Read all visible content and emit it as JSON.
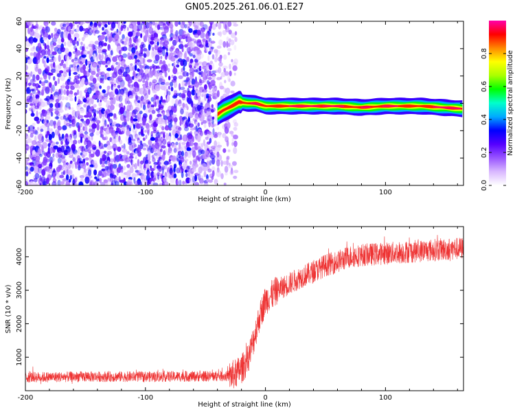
{
  "figure_title": "GN05.2025.261.06.01.E27",
  "chart_data": [
    {
      "type": "heatmap",
      "title": "GN05.2025.261.06.01.E27",
      "xlabel": "Height of straight line (km)",
      "ylabel": "Frequency (Hz)",
      "xlim": [
        -200,
        165
      ],
      "ylim": [
        -60,
        60
      ],
      "xticks": [
        -200,
        -100,
        0,
        100
      ],
      "xtick_labels": [
        "-200",
        "-100",
        "0",
        "100"
      ],
      "yticks": [
        -60,
        -40,
        -20,
        0,
        20,
        40,
        60
      ],
      "ytick_labels": [
        "-60",
        "-40",
        "-20",
        "0",
        "20",
        "40",
        "60"
      ],
      "colorbar": {
        "label": "Normalized spectral amplitude",
        "range": [
          0,
          1
        ],
        "ticks": [
          0,
          0.2,
          0.4,
          0.6,
          0.8
        ],
        "tick_labels": [
          "0.0",
          "0.2",
          "0.4",
          "0.6",
          "0.8"
        ],
        "colormap": [
          "#ffffff",
          "#d9b8ff",
          "#9955ff",
          "#5500ff",
          "#0000ff",
          "#00aaff",
          "#00ffcc",
          "#00ff00",
          "#aaff00",
          "#ffff00",
          "#ff8800",
          "#ff0000",
          "#ff00aa"
        ]
      },
      "noise_region": {
        "x_range": [
          -200,
          -25
        ],
        "freq_range": [
          -60,
          60
        ]
      },
      "ridge": [
        {
          "x": -40,
          "freq": -8
        },
        {
          "x": -35,
          "freq": -5
        },
        {
          "x": -28,
          "freq": -2
        },
        {
          "x": -22,
          "freq": 1
        },
        {
          "x": -15,
          "freq": 0
        },
        {
          "x": -8,
          "freq": 0
        },
        {
          "x": 0,
          "freq": -2
        },
        {
          "x": 20,
          "freq": -2
        },
        {
          "x": 60,
          "freq": -2
        },
        {
          "x": 80,
          "freq": -3
        },
        {
          "x": 100,
          "freq": -2
        },
        {
          "x": 130,
          "freq": -2
        },
        {
          "x": 165,
          "freq": -4
        }
      ]
    },
    {
      "type": "line",
      "xlabel": "Height of straight line (km)",
      "ylabel": "SNR (10 * v/v)",
      "xlim": [
        -200,
        165
      ],
      "ylim": [
        0,
        4900
      ],
      "xticks": [
        -200,
        -100,
        0,
        100
      ],
      "xtick_labels": [
        "-200",
        "-100",
        "0",
        "100"
      ],
      "yticks": [
        1000,
        2000,
        3000,
        4000
      ],
      "ytick_labels": [
        "1000",
        "2000",
        "3000",
        "4000"
      ],
      "color": "#ee3333",
      "series": [
        {
          "name": "SNR",
          "x": [
            -200,
            -150,
            -100,
            -50,
            -30,
            -25,
            -20,
            -15,
            -10,
            -5,
            0,
            5,
            10,
            20,
            30,
            40,
            50,
            60,
            70,
            80,
            100,
            120,
            140,
            165
          ],
          "y": [
            400,
            420,
            420,
            430,
            440,
            500,
            650,
            900,
            1500,
            2200,
            2700,
            2850,
            3000,
            3200,
            3400,
            3550,
            3750,
            3850,
            4000,
            4050,
            4100,
            4150,
            4200,
            4250
          ]
        }
      ]
    }
  ]
}
